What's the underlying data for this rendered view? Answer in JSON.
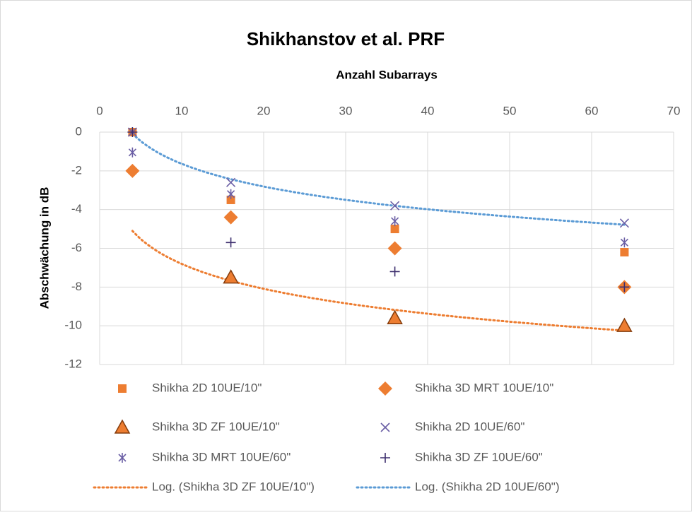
{
  "chart_data": {
    "type": "scatter",
    "title": "Shikhanstov et al. PRF",
    "x_label": "Anzahl Subarrays",
    "y_label": "Abschwächung in dB",
    "x": [
      4,
      16,
      36,
      64
    ],
    "xlim": [
      0,
      70
    ],
    "xticks": [
      0,
      10,
      20,
      30,
      40,
      50,
      60,
      70
    ],
    "ylim": [
      -12,
      0
    ],
    "yticks": [
      0,
      -2,
      -4,
      -6,
      -8,
      -10,
      -12
    ],
    "grid": true,
    "x_axis_position": "top",
    "legend": "bottom",
    "series": [
      {
        "name": "Shikha 2D 10UE/10\"",
        "color": "#ed7d31",
        "marker": "square",
        "values": [
          0,
          -3.5,
          -5.0,
          -6.2
        ]
      },
      {
        "name": "Shikha 3D MRT 10UE/10\"",
        "color": "#ed7d31",
        "marker": "diamond",
        "values": [
          -2.0,
          -4.4,
          -6.0,
          -8.0
        ]
      },
      {
        "name": "Shikha 3D ZF 10UE/10\"",
        "color": "#c55a11",
        "marker": "triangle",
        "values": [
          null,
          -7.5,
          -9.6,
          -10.0
        ]
      },
      {
        "name": "Shikha 2D 10UE/60\"",
        "color": "#6b5fa5",
        "marker": "x",
        "values": [
          0,
          -2.6,
          -3.8,
          -4.7
        ]
      },
      {
        "name": "Shikha 3D MRT 10UE/60\"",
        "color": "#6b5fa5",
        "marker": "asterisk",
        "values": [
          -1.05,
          -3.2,
          -4.6,
          -5.7
        ]
      },
      {
        "name": "Shikha 3D ZF 10UE/60\"",
        "color": "#3d2f6e",
        "marker": "plus",
        "values": [
          0,
          -5.7,
          -7.2,
          -8.0
        ]
      }
    ],
    "trendlines": [
      {
        "name": "Log. (Shikha 3D ZF 10UE/10\")",
        "series": 2,
        "color": "#ed7d31",
        "kind": "log"
      },
      {
        "name": "Log. (Shikha 2D 10UE/60\")",
        "series": 3,
        "color": "#5b9bd5",
        "kind": "log"
      }
    ]
  }
}
